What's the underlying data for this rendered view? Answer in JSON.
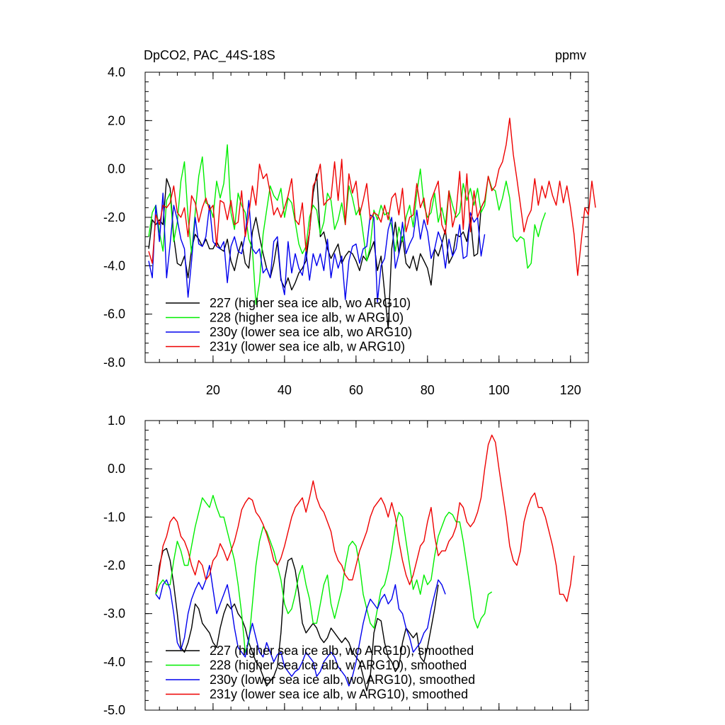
{
  "header": {
    "title": "DpCO2, PAC_44S-18S",
    "unit": "ppmv"
  },
  "colors": {
    "227": "#000000",
    "228": "#00ee00",
    "230y": "#0000ee",
    "231y": "#ee0000"
  },
  "chart_data": [
    {
      "type": "line",
      "xlim": [
        1,
        125
      ],
      "ylim": [
        -8.0,
        4.0
      ],
      "xticks": [
        20,
        40,
        60,
        80,
        100,
        120
      ],
      "xtick_labels": [
        "20",
        "40",
        "60",
        "80",
        "100",
        "120"
      ],
      "yticks": [
        -8.0,
        -6.0,
        -4.0,
        -2.0,
        0.0,
        2.0,
        4.0
      ],
      "ytick_labels": [
        "-8.0",
        "-6.0",
        "-4.0",
        "-2.0",
        "0.0",
        "2.0",
        "4.0"
      ],
      "legend_position": "bottom-left",
      "series": [
        {
          "name": "227 (higher sea ice alb, wo ARG10)",
          "color": "#000000",
          "x_start": 2,
          "values": [
            -3.3,
            -2.1,
            -2.3,
            -2.1,
            -2.3,
            -0.4,
            -0.8,
            -2.8,
            -3.9,
            -4.0,
            -3.6,
            -4.5,
            -3.3,
            -2.7,
            -2.9,
            -3.2,
            -2.9,
            -3.3,
            -3.3,
            -3.0,
            -3.3,
            -3.4,
            -2.9,
            -3.8,
            -4.2,
            -3.5,
            -3.0,
            -3.9,
            -4.1,
            -2.6,
            -2.0,
            -2.8,
            -3.5,
            -4.1,
            -4.5,
            -3.9,
            -3.0,
            -4.6,
            -4.9,
            -4.5,
            -5.0,
            -4.7,
            -4.3,
            -4.1,
            -3.8,
            -2.6,
            -1.0,
            -0.2,
            -2.8,
            -2.6,
            -3.3,
            -3.7,
            -3.4,
            -3.1,
            -3.9,
            -3.6,
            -3.4,
            -3.5,
            -3.8,
            -4.2,
            -3.6,
            -3.8,
            -3.4,
            -3.0,
            -4.2,
            -3.6,
            -5.1,
            -6.6,
            -3.3,
            -2.2,
            -3.5,
            -2.8,
            -3.9,
            -4.1,
            -3.6,
            -4.2,
            -3.5,
            -3.8,
            -4.1,
            -4.8,
            -3.3,
            -3.6,
            -3.1,
            -2.5,
            -3.9,
            -3.6,
            -2.7,
            -2.8,
            -2.6,
            -3.0,
            -2.0,
            -3.6,
            -3.5,
            -1.6,
            -1.3
          ]
        },
        {
          "name": "228 (higher sea ice alb, w ARG10)",
          "color": "#00ee00",
          "x_start": 2,
          "values": [
            -2.8,
            -1.8,
            -1.5,
            -2.6,
            -3.4,
            -1.3,
            -1.0,
            -3.0,
            -2.2,
            -0.5,
            0.3,
            -2.0,
            -3.5,
            -1.8,
            -0.3,
            0.5,
            -1.4,
            -1.5,
            -2.0,
            -0.5,
            -1.2,
            -0.6,
            1.0,
            -1.8,
            -2.5,
            -1.0,
            -1.5,
            -1.8,
            -2.9,
            -3.3,
            -5.6,
            -4.7,
            -2.7,
            -1.7,
            -0.7,
            -1.1,
            -1.3,
            -0.8,
            -2.0,
            -1.2,
            -1.4,
            -2.2,
            -3.1,
            -3.5,
            -3.2,
            -2.0,
            -1.5,
            -1.7,
            -2.7,
            -2.2,
            -1.0,
            -1.3,
            -2.5,
            -2.1,
            -1.4,
            -2.3,
            -0.7,
            -1.2,
            -1.9,
            -1.6,
            -2.7,
            -3.8,
            -3.2,
            -1.7,
            -2.1,
            -1.5,
            -1.9,
            -1.8,
            -2.4,
            -3.4,
            -2.4,
            -3.0,
            -2.0,
            -1.5,
            -2.4,
            -1.0,
            0.0,
            -1.5,
            -2.0,
            -1.8,
            -1.0,
            -2.2,
            -1.6,
            -2.3,
            -0.9,
            -1.5,
            -2.0,
            -1.8,
            -0.6,
            -1.3,
            -0.8,
            -1.5,
            -0.8,
            -1.8,
            -1.5,
            -0.3,
            -0.8,
            -0.9,
            -1.7,
            -1.2,
            -0.5,
            -1.2,
            -2.8,
            -3.0,
            -2.8,
            -2.9,
            -4.1,
            -3.9,
            -2.3,
            -2.8,
            -2.2,
            -1.8
          ]
        },
        {
          "name": "230y (lower sea ice alb, wo ARG10)",
          "color": "#0000ee",
          "x_start": 2,
          "values": [
            -3.8,
            -4.5,
            -1.5,
            -3.0,
            -1.0,
            -4.5,
            -3.1,
            -1.5,
            -2.1,
            -2.9,
            -3.3,
            -5.3,
            -3.8,
            -2.0,
            -3.1,
            -3.2,
            -2.8,
            -1.5,
            -3.0,
            -3.2,
            -3.3,
            -3.0,
            -4.7,
            -3.2,
            -2.8,
            -3.4,
            -3.5,
            -2.7,
            -1.3,
            -3.3,
            -3.5,
            -3.3,
            -4.3,
            -4.1,
            -4.5,
            -3.0,
            -2.8,
            -4.5,
            -5.2,
            -3.0,
            -4.3,
            -3.5,
            -4.1,
            -4.4,
            -3.4,
            -4.6,
            -3.5,
            -4.0,
            -3.5,
            -4.2,
            -2.9,
            -4.5,
            -3.5,
            -4.1,
            -3.6,
            -5.4,
            -3.8,
            -3.2,
            -3.1,
            -3.9,
            -3.3,
            -3.2,
            -1.9,
            -2.0,
            -5.5,
            -4.0,
            -3.7,
            -2.5,
            -2.0,
            -4.1,
            -3.5,
            -2.2,
            -3.5,
            -3.1,
            -2.8,
            -1.7,
            -2.9,
            -2.1,
            -2.6,
            -3.7,
            -3.3,
            -2.6,
            -3.0,
            -4.1,
            -2.9,
            -3.6,
            -3.3,
            -2.3,
            -3.7,
            -3.6,
            -1.8,
            -2.2,
            -2.0,
            -3.6,
            -2.7
          ]
        },
        {
          "name": "231y (lower sea ice alb, w ARG10)",
          "color": "#ee0000",
          "x_start": 2,
          "values": [
            -3.4,
            -3.9,
            -1.9,
            -2.3,
            -1.5,
            -1.6,
            -1.4,
            -0.7,
            -1.8,
            -2.0,
            -1.6,
            -2.8,
            -1.1,
            -1.4,
            -2.2,
            -1.6,
            -1.2,
            -1.7,
            -1.5,
            -3.2,
            -1.3,
            -1.4,
            -2.1,
            -1.3,
            -2.3,
            -2.2,
            -0.9,
            -2.8,
            -1.9,
            -0.7,
            -1.5,
            0.2,
            -0.4,
            -0.2,
            -1.0,
            -1.9,
            -1.6,
            -2.0,
            -1.6,
            -1.1,
            -0.4,
            -2.1,
            -2.3,
            -1.4,
            -3.4,
            -2.6,
            -0.7,
            -0.4,
            0.2,
            -1.5,
            -1.3,
            -1.2,
            0.3,
            -1.3,
            0.4,
            -2.3,
            -0.2,
            -1.0,
            -0.5,
            -1.9,
            -1.3,
            -0.6,
            -2.1,
            -1.8,
            -1.9,
            -2.2,
            -1.5,
            -2.1,
            -1.2,
            -1.0,
            -1.9,
            -0.8,
            -2.6,
            -2.0,
            -1.9,
            -0.6,
            -1.6,
            -1.2,
            -2.3,
            -1.3,
            -0.9,
            -0.5,
            -2.3,
            -2.7,
            -0.9,
            -2.4,
            -1.8,
            -0.1,
            -2.5,
            -0.2,
            -2.6,
            -0.9,
            -2.0,
            -1.6,
            -1.3,
            -0.3,
            -0.9,
            -0.7,
            0.0,
            0.3,
            1.0,
            2.1,
            0.6,
            -0.4,
            -1.5,
            -2.6,
            -2.0,
            -1.7,
            -0.4,
            -1.5,
            -0.7,
            -1.2,
            -0.5,
            -1.1,
            -1.5,
            -0.5,
            -1.4,
            -0.7,
            -1.6,
            -2.7,
            -4.4,
            -3.0,
            -1.6,
            -1.9,
            -0.5,
            -1.6
          ]
        }
      ]
    },
    {
      "type": "line",
      "xlim": [
        1,
        125
      ],
      "ylim": [
        -5.0,
        1.0
      ],
      "xticks": [
        20,
        40,
        60,
        80,
        100,
        120
      ],
      "yticks": [
        -5.0,
        -4.0,
        -3.0,
        -2.0,
        -1.0,
        0.0,
        1.0
      ],
      "ytick_labels": [
        "-5.0",
        "-4.0",
        "-3.0",
        "-2.0",
        "-1.0",
        "0.0",
        "1.0"
      ],
      "legend_position": "bottom-left",
      "series": [
        {
          "name": "227 (higher sea ice alb, wo ARG10), smoothed",
          "color": "#000000",
          "x_start": 4,
          "values": [
            -2.6,
            -2.0,
            -1.7,
            -1.65,
            -1.9,
            -2.4,
            -3.0,
            -3.7,
            -3.8,
            -3.6,
            -3.3,
            -2.8,
            -2.9,
            -3.2,
            -3.3,
            -3.4,
            -3.6,
            -3.7,
            -3.3,
            -3.0,
            -2.8,
            -2.9,
            -2.8,
            -3.0,
            -3.1,
            -3.3,
            -3.6,
            -3.8,
            -4.0,
            -4.1,
            -4.3,
            -4.5,
            -4.4,
            -4.3,
            -4.1,
            -3.4,
            -2.3,
            -1.9,
            -1.85,
            -2.1,
            -2.6,
            -3.2,
            -3.4,
            -3.3,
            -3.2,
            -3.3,
            -3.5,
            -3.6,
            -3.5,
            -3.3,
            -3.4,
            -3.5,
            -3.6,
            -3.5,
            -3.6,
            -3.8,
            -3.9,
            -4.0,
            -4.3,
            -4.6,
            -4.3,
            -3.4,
            -3.1,
            -3.15,
            -3.6,
            -3.9,
            -4.0,
            -4.2,
            -4.1,
            -3.6,
            -3.3,
            -3.4,
            -3.5,
            -3.4,
            -3.9,
            -4.0,
            -3.7,
            -3.3,
            -2.9,
            -2.4
          ]
        },
        {
          "name": "228 (higher sea ice alb, w ARG10), smoothed",
          "color": "#00ee00",
          "x_start": 4,
          "values": [
            -2.6,
            -2.4,
            -2.3,
            -2.4,
            -2.4,
            -1.9,
            -1.5,
            -1.7,
            -2.0,
            -2.0,
            -1.6,
            -1.2,
            -0.9,
            -0.6,
            -0.7,
            -0.8,
            -0.55,
            -0.8,
            -1.0,
            -1.0,
            -1.3,
            -1.6,
            -1.9,
            -2.4,
            -3.0,
            -3.8,
            -3.6,
            -2.8,
            -2.0,
            -1.5,
            -1.2,
            -1.3,
            -1.5,
            -1.7,
            -2.0,
            -2.3,
            -2.8,
            -3.0,
            -2.9,
            -2.6,
            -2.2,
            -2.0,
            -2.4,
            -2.7,
            -3.2,
            -3.2,
            -2.8,
            -2.4,
            -2.2,
            -2.8,
            -3.1,
            -2.8,
            -2.5,
            -2.0,
            -1.6,
            -1.5,
            -1.6,
            -2.0,
            -2.6,
            -2.9,
            -3.2,
            -3.3,
            -2.9,
            -2.5,
            -2.4,
            -2.1,
            -1.7,
            -1.2,
            -0.9,
            -1.0,
            -1.5,
            -2.0,
            -2.5,
            -2.3,
            -2.6,
            -2.2,
            -2.4,
            -2.3,
            -1.8,
            -1.4,
            -1.2,
            -1.0,
            -0.9,
            -0.95,
            -1.1,
            -1.1,
            -1.5,
            -2.0,
            -2.5,
            -3.1,
            -3.3,
            -3.1,
            -3.0,
            -2.6,
            -2.55
          ]
        },
        {
          "name": "230y (lower sea ice alb, wo ARG10), smoothed",
          "color": "#0000ee",
          "x_start": 4,
          "values": [
            -2.6,
            -2.7,
            -2.4,
            -2.3,
            -2.5,
            -3.0,
            -3.6,
            -3.75,
            -3.5,
            -3.0,
            -2.7,
            -2.5,
            -2.35,
            -2.5,
            -2.3,
            -2.0,
            -2.5,
            -3.0,
            -2.8,
            -2.6,
            -2.4,
            -2.8,
            -3.3,
            -3.7,
            -3.8,
            -3.9,
            -3.5,
            -3.2,
            -3.5,
            -3.8,
            -3.9,
            -3.6,
            -3.8,
            -4.0,
            -3.85,
            -3.8,
            -4.1,
            -4.2,
            -4.3,
            -4.2,
            -4.15,
            -4.0,
            -3.8,
            -3.9,
            -4.0,
            -4.3,
            -4.2,
            -4.0,
            -3.9,
            -3.8,
            -3.9,
            -4.1,
            -4.2,
            -4.3,
            -4.5,
            -4.3,
            -4.0,
            -3.6,
            -3.2,
            -2.9,
            -2.7,
            -2.8,
            -2.9,
            -2.7,
            -2.6,
            -2.8,
            -2.7,
            -2.4,
            -2.9,
            -3.0,
            -3.3,
            -3.5,
            -3.8,
            -3.7,
            -3.6,
            -3.4,
            -3.3,
            -2.9,
            -2.6,
            -2.3,
            -2.4,
            -2.6
          ]
        },
        {
          "name": "231y (lower sea ice alb, w ARG10), smoothed",
          "color": "#ee0000",
          "x_start": 4,
          "values": [
            -2.55,
            -2.1,
            -1.6,
            -1.4,
            -1.1,
            -1.0,
            -1.1,
            -1.4,
            -1.5,
            -1.7,
            -2.0,
            -2.2,
            -1.9,
            -2.0,
            -2.3,
            -2.2,
            -1.9,
            -1.8,
            -1.55,
            -1.7,
            -1.9,
            -1.7,
            -1.5,
            -1.2,
            -0.85,
            -0.7,
            -0.6,
            -0.65,
            -0.9,
            -1.0,
            -1.15,
            -1.35,
            -1.6,
            -1.9,
            -2.0,
            -1.85,
            -1.6,
            -1.3,
            -1.0,
            -0.8,
            -0.7,
            -0.6,
            -0.9,
            -0.6,
            -0.25,
            -0.6,
            -0.8,
            -0.9,
            -1.1,
            -1.3,
            -1.7,
            -1.9,
            -2.0,
            -2.2,
            -2.3,
            -2.3,
            -2.0,
            -1.7,
            -1.5,
            -1.3,
            -1.0,
            -0.8,
            -0.7,
            -0.6,
            -0.75,
            -1.0,
            -0.7,
            -1.0,
            -1.5,
            -1.9,
            -2.2,
            -2.4,
            -2.2,
            -1.9,
            -1.6,
            -1.5,
            -1.1,
            -0.8,
            -1.4,
            -1.8,
            -1.7,
            -1.7,
            -1.5,
            -1.4,
            -1.2,
            -0.7,
            -0.8,
            -1.1,
            -1.2,
            -1.1,
            -0.9,
            -0.6,
            0.0,
            0.5,
            0.7,
            0.55,
            0.0,
            -0.5,
            -1.0,
            -1.6,
            -1.9,
            -2.0,
            -1.7,
            -1.1,
            -0.8,
            -0.6,
            -0.5,
            -0.8,
            -0.8,
            -1.0,
            -1.3,
            -1.6,
            -2.0,
            -2.6,
            -2.6,
            -2.75,
            -2.4,
            -1.8
          ]
        }
      ]
    }
  ]
}
